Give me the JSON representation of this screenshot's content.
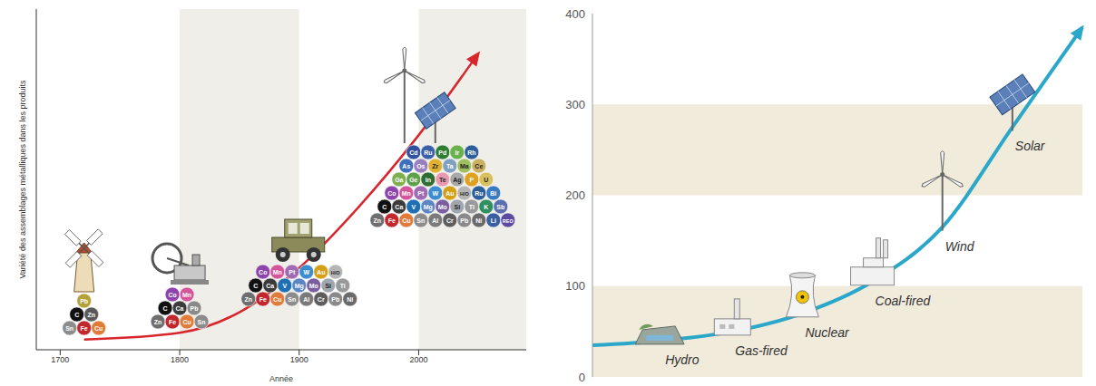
{
  "chart_data": [
    {
      "type": "line",
      "x_label": "Année",
      "y_label": "Variété des assemblages métalliques dans les produits",
      "x": [
        1720,
        1800,
        1850,
        1900,
        1950,
        2000,
        2050
      ],
      "values": [
        3,
        5,
        11,
        24,
        42,
        63,
        87
      ],
      "color": "#d7262c",
      "xlim": [
        1680,
        2090
      ],
      "xticks": [
        1700,
        1800,
        1900,
        2000
      ],
      "ylim": [
        0,
        100
      ],
      "tick_labels": "x",
      "annotations": [
        {
          "year": 1720,
          "rows": [
            [
              "Sn",
              "Fe",
              "Cu"
            ],
            [
              "C",
              "Zn"
            ],
            [
              "Pb"
            ]
          ],
          "colors": [
            [
              "#8c8c8c",
              "#c1272d",
              "#e07b39"
            ],
            [
              "#111111",
              "#5a5a5a"
            ],
            [
              "#b3a23a"
            ]
          ]
        },
        {
          "year": 1800,
          "rows": [
            [
              "Zn",
              "Fe",
              "Cu",
              "Sn"
            ],
            [
              "C",
              "Ca",
              "Pb"
            ],
            [
              "Co",
              "Mn"
            ]
          ],
          "colors": [
            [
              "#6e6e6e",
              "#c1272d",
              "#e07b39",
              "#8c8c8c"
            ],
            [
              "#111111",
              "#3b3b3b",
              "#8a8a8a"
            ],
            [
              "#8e44ad",
              "#d4569a"
            ]
          ]
        },
        {
          "year": 1900,
          "rows": [
            [
              "Zn",
              "Fe",
              "Cu",
              "Sn",
              "Al",
              "Cr",
              "Pb",
              "Ni"
            ],
            [
              "C",
              "Ca",
              "V",
              "Mg",
              "Mo",
              "Si",
              "Ti"
            ],
            [
              "Co",
              "Mn",
              "Pt",
              "W",
              "Au",
              "H/O"
            ]
          ],
          "colors": [
            [
              "#6e6e6e",
              "#c1272d",
              "#e07b39",
              "#8c8c8c",
              "#7a7a7a",
              "#5e5e5e",
              "#8a8a8a",
              "#6a6a6a"
            ],
            [
              "#111111",
              "#3b3b3b",
              "#1f6fb5",
              "#5b86c5",
              "#7a5fa0",
              "#a0a6ae",
              "#9a9a9a"
            ],
            [
              "#8e44ad",
              "#d4569a",
              "#a06ab4",
              "#3d8ed0",
              "#d4a017",
              "#b5b5b5"
            ]
          ]
        },
        {
          "year": 2020,
          "rows": [
            [
              "Zn",
              "Fe",
              "Cu",
              "Sn",
              "Al",
              "Cr",
              "Pb",
              "Ni",
              "Li",
              "REO"
            ],
            [
              "C",
              "Ca",
              "V",
              "Mg",
              "Mo",
              "Si",
              "Ti",
              "K",
              "Sb"
            ],
            [
              "Co",
              "Mn",
              "Pt",
              "W",
              "Au",
              "H/O",
              "Ru",
              "Bi"
            ],
            [
              "Ga",
              "Ge",
              "In",
              "Te",
              "Ag",
              "P",
              "U"
            ],
            [
              "As",
              "Os",
              "Zr",
              "Ta",
              "Ma",
              "Ce"
            ],
            [
              "Cd",
              "Ru",
              "Pd",
              "Ir",
              "Rh"
            ]
          ],
          "colors": [
            [
              "#6e6e6e",
              "#c1272d",
              "#e07b39",
              "#8c8c8c",
              "#7a7a7a",
              "#5e5e5e",
              "#8a8a8a",
              "#6a6a6a",
              "#3a5fa0",
              "#5b4a9e"
            ],
            [
              "#111111",
              "#3b3b3b",
              "#1f6fb5",
              "#5b86c5",
              "#7a5fa0",
              "#a0a6ae",
              "#9a9a9a",
              "#2f8f5f",
              "#5a6fb0"
            ],
            [
              "#8e44ad",
              "#d4569a",
              "#a06ab4",
              "#3d8ed0",
              "#d4a017",
              "#b5b5b5",
              "#2e5e9a",
              "#3a7abf"
            ],
            [
              "#7fb050",
              "#5fa04a",
              "#2e6e32",
              "#e89ab0",
              "#a8a8a8",
              "#e0a020",
              "#d9c060"
            ],
            [
              "#3f6fbf",
              "#9a7fbf",
              "#e0b030",
              "#7fa0c0",
              "#9fbf5f",
              "#c8b060"
            ],
            [
              "#3050a0",
              "#3b5fa8",
              "#2e7d32",
              "#6ab04c",
              "#2e5e9a"
            ]
          ]
        }
      ]
    },
    {
      "type": "line",
      "categories": [
        null,
        "Hydro",
        "Gas-fired",
        "Nuclear",
        "Coal-fired",
        "Wind",
        "Solar",
        null
      ],
      "values": [
        35,
        40,
        50,
        70,
        105,
        165,
        275,
        385
      ],
      "color": "#2aa7c9",
      "ylim": [
        0,
        400
      ],
      "yticks": [
        0,
        100,
        200,
        300,
        400
      ],
      "tick_labels": "y"
    }
  ]
}
